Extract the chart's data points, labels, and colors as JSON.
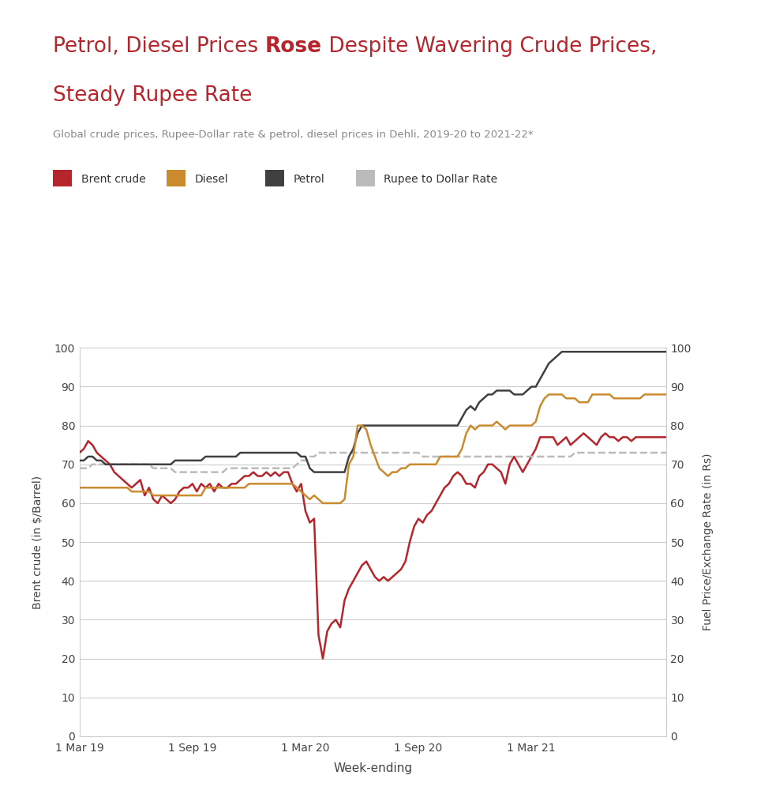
{
  "title_part1": "Petrol, Diesel Prices ",
  "title_bold": "Rose",
  "title_part2": " Despite Wavering Crude Prices,",
  "title_line2": "Steady Rupee Rate",
  "subtitle": "Global crude prices, Rupee-Dollar rate & petrol, diesel prices in Dehli, 2019-20 to 2021-22*",
  "xlabel": "Week-ending",
  "ylabel_left": "Brent crude (in $/Barrel)",
  "ylabel_right": "Fuel Price/Exchange Rate (in Rs)",
  "xlim": [
    0,
    135
  ],
  "ylim": [
    0,
    100
  ],
  "xtick_positions": [
    0,
    26,
    52,
    78,
    104
  ],
  "xtick_labels": [
    "1 Mar 19",
    "1 Sep 19",
    "1 Mar 20",
    "1 Sep 20",
    "1 Mar 21"
  ],
  "ytick_positions": [
    0,
    10,
    20,
    30,
    40,
    50,
    60,
    70,
    80,
    90,
    100
  ],
  "color_brent": "#B5252B",
  "color_diesel": "#C98B2E",
  "color_petrol": "#404040",
  "color_rupee": "#BBBBBB",
  "line_width": 1.8,
  "background_color": "#FFFFFF",
  "title_color": "#B5252B",
  "subtitle_color": "#888888",
  "brent_crude": [
    73,
    74,
    76,
    75,
    73,
    72,
    71,
    70,
    68,
    67,
    66,
    65,
    64,
    65,
    66,
    62,
    64,
    61,
    60,
    62,
    61,
    60,
    61,
    63,
    64,
    64,
    65,
    63,
    65,
    64,
    65,
    63,
    65,
    64,
    64,
    65,
    65,
    66,
    67,
    67,
    68,
    67,
    67,
    68,
    67,
    68,
    67,
    68,
    68,
    65,
    63,
    65,
    58,
    55,
    56,
    26,
    20,
    27,
    29,
    30,
    28,
    35,
    38,
    40,
    42,
    44,
    45,
    43,
    41,
    40,
    41,
    40,
    41,
    42,
    43,
    45,
    50,
    54,
    56,
    55,
    57,
    58,
    60,
    62,
    64,
    65,
    67,
    68,
    67,
    65,
    65,
    64,
    67,
    68,
    70,
    70,
    69,
    68,
    65,
    70,
    72,
    70,
    68,
    70,
    72,
    74,
    77,
    77,
    77,
    77,
    75,
    76,
    77,
    75,
    76,
    77,
    78,
    77,
    76,
    75,
    77,
    78,
    77,
    77,
    76,
    77,
    77,
    76,
    77,
    77,
    77,
    77,
    77,
    77,
    77,
    77
  ],
  "diesel": [
    64,
    64,
    64,
    64,
    64,
    64,
    64,
    64,
    64,
    64,
    64,
    64,
    63,
    63,
    63,
    63,
    63,
    62,
    62,
    62,
    62,
    62,
    62,
    62,
    62,
    62,
    62,
    62,
    62,
    64,
    64,
    64,
    64,
    64,
    64,
    64,
    64,
    64,
    64,
    65,
    65,
    65,
    65,
    65,
    65,
    65,
    65,
    65,
    65,
    65,
    64,
    63,
    62,
    61,
    62,
    61,
    60,
    60,
    60,
    60,
    60,
    61,
    70,
    72,
    80,
    80,
    79,
    75,
    72,
    69,
    68,
    67,
    68,
    68,
    69,
    69,
    70,
    70,
    70,
    70,
    70,
    70,
    70,
    72,
    72,
    72,
    72,
    72,
    74,
    78,
    80,
    79,
    80,
    80,
    80,
    80,
    81,
    80,
    79,
    80,
    80,
    80,
    80,
    80,
    80,
    81,
    85,
    87,
    88,
    88,
    88,
    88,
    87,
    87,
    87,
    86,
    86,
    86,
    88,
    88,
    88,
    88,
    88,
    87,
    87,
    87,
    87,
    87,
    87,
    87,
    88,
    88,
    88,
    88,
    88,
    88
  ],
  "petrol": [
    71,
    71,
    72,
    72,
    71,
    71,
    70,
    70,
    70,
    70,
    70,
    70,
    70,
    70,
    70,
    70,
    70,
    70,
    70,
    70,
    70,
    70,
    71,
    71,
    71,
    71,
    71,
    71,
    71,
    72,
    72,
    72,
    72,
    72,
    72,
    72,
    72,
    73,
    73,
    73,
    73,
    73,
    73,
    73,
    73,
    73,
    73,
    73,
    73,
    73,
    73,
    72,
    72,
    69,
    68,
    68,
    68,
    68,
    68,
    68,
    68,
    68,
    72,
    74,
    78,
    80,
    80,
    80,
    80,
    80,
    80,
    80,
    80,
    80,
    80,
    80,
    80,
    80,
    80,
    80,
    80,
    80,
    80,
    80,
    80,
    80,
    80,
    80,
    82,
    84,
    85,
    84,
    86,
    87,
    88,
    88,
    89,
    89,
    89,
    89,
    88,
    88,
    88,
    89,
    90,
    90,
    92,
    94,
    96,
    97,
    98,
    99,
    99,
    99,
    99,
    99,
    99,
    99,
    99,
    99,
    99,
    99,
    99,
    99,
    99,
    99,
    99,
    99,
    99,
    99,
    99,
    99,
    99,
    99,
    99,
    99
  ],
  "rupee": [
    69,
    69,
    69,
    70,
    70,
    70,
    70,
    70,
    70,
    70,
    70,
    70,
    70,
    70,
    70,
    70,
    70,
    69,
    69,
    69,
    69,
    69,
    68,
    68,
    68,
    68,
    68,
    68,
    68,
    68,
    68,
    68,
    68,
    68,
    69,
    69,
    69,
    69,
    69,
    69,
    69,
    69,
    69,
    69,
    69,
    69,
    69,
    69,
    69,
    69,
    70,
    71,
    71,
    72,
    72,
    73,
    73,
    73,
    73,
    73,
    73,
    73,
    73,
    73,
    73,
    73,
    73,
    73,
    73,
    73,
    73,
    73,
    73,
    73,
    73,
    73,
    73,
    73,
    73,
    72,
    72,
    72,
    72,
    72,
    72,
    72,
    72,
    72,
    72,
    72,
    72,
    72,
    72,
    72,
    72,
    72,
    72,
    72,
    72,
    72,
    72,
    72,
    72,
    72,
    72,
    72,
    72,
    72,
    72,
    72,
    72,
    72,
    72,
    72,
    73,
    73,
    73,
    73,
    73,
    73,
    73,
    73,
    73,
    73,
    73,
    73,
    73,
    73,
    73,
    73,
    73,
    73,
    73,
    73,
    73,
    73
  ]
}
